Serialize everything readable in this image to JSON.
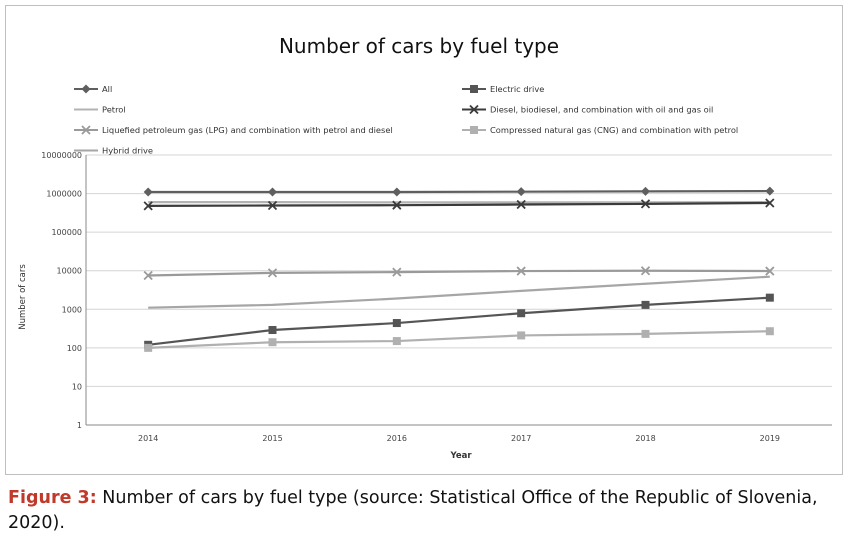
{
  "colors": {
    "All": "#5f5f5f",
    "Petrol": "#b3b3b3",
    "Diesel": "#3b3b3b",
    "LPG": "#9a9a9a",
    "CNG": "#b0b0b0",
    "Electric": "#555555",
    "Hybrid": "#a6a6a6",
    "grid": "#d4d4d4"
  },
  "chart_data": {
    "type": "line",
    "title": "Number of cars by fuel type",
    "xlabel": "Year",
    "ylabel": "Number of cars",
    "yscale": "log",
    "ylim": [
      1,
      10000000
    ],
    "yticks": [
      "1",
      "10",
      "100",
      "1000",
      "10000",
      "100000",
      "1000000",
      "10000000"
    ],
    "categories": [
      "2014",
      "2015",
      "2016",
      "2017",
      "2018",
      "2019"
    ],
    "legend_position": "top",
    "grid": true,
    "series": [
      {
        "name": "All",
        "key": "All",
        "marker": "diamond",
        "values": [
          1100000,
          1100000,
          1100000,
          1120000,
          1140000,
          1160000
        ]
      },
      {
        "name": "Petrol",
        "key": "Petrol",
        "marker": "none",
        "values": [
          600000,
          600000,
          590000,
          590000,
          590000,
          600000
        ]
      },
      {
        "name": "Liquefied petroleum gas (LPG) and combination with petrol and diesel",
        "key": "LPG",
        "marker": "x",
        "values": [
          7500,
          8800,
          9200,
          9800,
          10000,
          9800
        ]
      },
      {
        "name": "Hybrid drive",
        "key": "Hybrid",
        "marker": "none",
        "values": [
          1100,
          1300,
          1900,
          3000,
          4600,
          7000
        ]
      },
      {
        "name": "Electric drive",
        "key": "Electric",
        "marker": "square",
        "values": [
          120,
          290,
          440,
          790,
          1300,
          2000
        ]
      },
      {
        "name": "Diesel, biodiesel, and combination with oil and gas oil",
        "key": "Diesel",
        "marker": "x",
        "values": [
          480000,
          490000,
          500000,
          520000,
          540000,
          570000
        ]
      },
      {
        "name": "Compressed natural gas (CNG) and combination with petrol",
        "key": "CNG",
        "marker": "square",
        "values": [
          100,
          140,
          150,
          210,
          230,
          270
        ]
      }
    ]
  },
  "caption": {
    "label": "Figure 3:",
    "text": " Number of cars by fuel type (source: Statistical Office of the Republic of Slovenia, 2020)."
  }
}
